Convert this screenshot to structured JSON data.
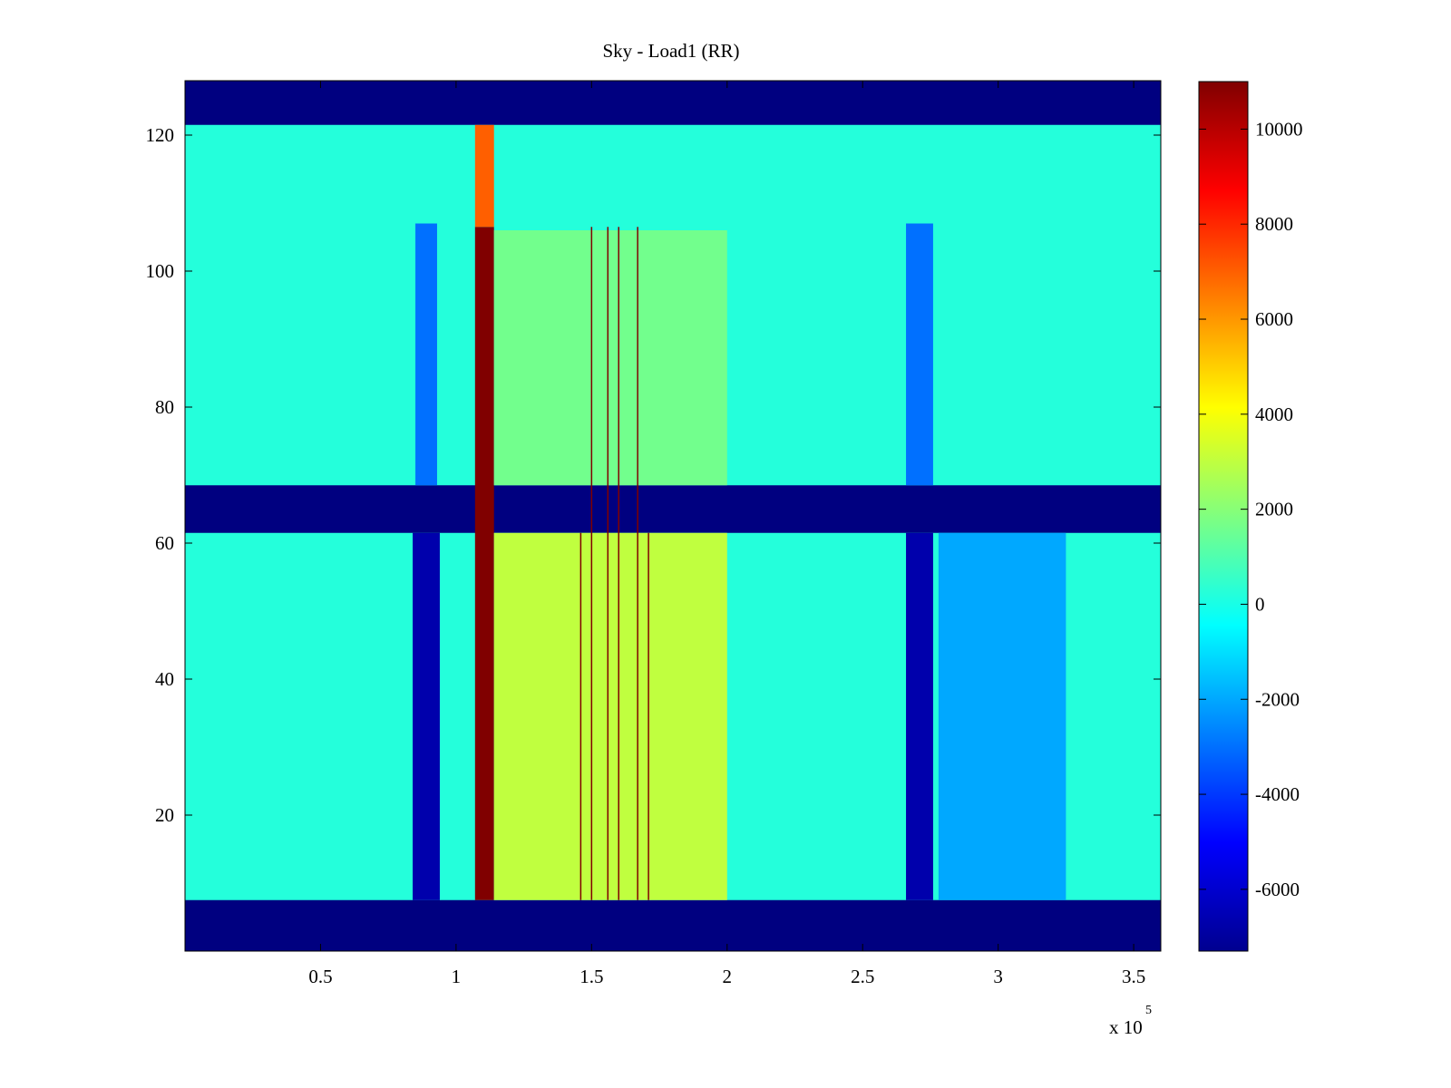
{
  "chart_data": {
    "type": "heatmap",
    "title": "Sky - Load1 (RR)",
    "xlabel": "",
    "ylabel": "",
    "x_multiplier_label": "x 10",
    "x_multiplier_exponent": "5",
    "xlim": [
      0,
      3.6
    ],
    "ylim": [
      0,
      128
    ],
    "x_ticks": [
      0.5,
      1,
      1.5,
      2,
      2.5,
      3,
      3.5
    ],
    "x_tick_labels": [
      "0.5",
      "1",
      "1.5",
      "2",
      "2.5",
      "3",
      "3.5"
    ],
    "y_ticks": [
      20,
      40,
      60,
      80,
      100,
      120
    ],
    "y_tick_labels": [
      "20",
      "40",
      "60",
      "80",
      "100",
      "120"
    ],
    "colorbar": {
      "colormap": "jet",
      "clim": [
        -7300,
        11000
      ],
      "ticks": [
        -6000,
        -4000,
        -2000,
        0,
        2000,
        4000,
        6000,
        8000,
        10000
      ],
      "tick_labels": [
        "-6000",
        "-4000",
        "-2000",
        "0",
        "2000",
        "4000",
        "6000",
        "8000",
        "10000"
      ]
    },
    "masked_rows": [
      [
        0,
        7.5
      ],
      [
        61.5,
        68.5
      ],
      [
        121.5,
        128
      ]
    ],
    "masked_value": -7300,
    "background_value": 200,
    "columns": [
      {
        "x": [
          0.84,
          0.94
        ],
        "value": -6500,
        "rows": [
          7.5,
          61.5
        ]
      },
      {
        "x": [
          0.85,
          0.93
        ],
        "value": -3000,
        "rows": [
          68.5,
          107
        ]
      },
      {
        "x": [
          2.66,
          2.76
        ],
        "value": -6500,
        "rows": [
          7.5,
          61.5
        ]
      },
      {
        "x": [
          2.66,
          2.76
        ],
        "value": -3000,
        "rows": [
          68.5,
          107
        ]
      },
      {
        "x": [
          1.07,
          1.14
        ],
        "value": 11000,
        "rows": [
          7.5,
          106.5
        ]
      },
      {
        "x": [
          1.07,
          1.14
        ],
        "value": 7000,
        "rows": [
          106.5,
          121.5
        ]
      },
      {
        "x": [
          1.14,
          2.0
        ],
        "value": 3000,
        "rows": [
          7.5,
          61.5
        ]
      },
      {
        "x": [
          1.14,
          2.0
        ],
        "value": 1600,
        "rows": [
          68.5,
          106
        ]
      },
      {
        "x": [
          2.78,
          3.25
        ],
        "value": -2000,
        "rows": [
          7.5,
          61.5
        ]
      }
    ],
    "vertical_lines": [
      {
        "x": 1.46,
        "value": 11000,
        "rows": [
          7.5,
          61.5
        ]
      },
      {
        "x": 1.5,
        "value": 11000,
        "rows": [
          7.5,
          106.5
        ]
      },
      {
        "x": 1.56,
        "value": 11000,
        "rows": [
          7.5,
          106.5
        ]
      },
      {
        "x": 1.6,
        "value": 11000,
        "rows": [
          7.5,
          106.5
        ]
      },
      {
        "x": 1.67,
        "value": 11000,
        "rows": [
          7.5,
          106.5
        ]
      },
      {
        "x": 1.71,
        "value": 11000,
        "rows": [
          7.5,
          61.5
        ]
      }
    ]
  }
}
